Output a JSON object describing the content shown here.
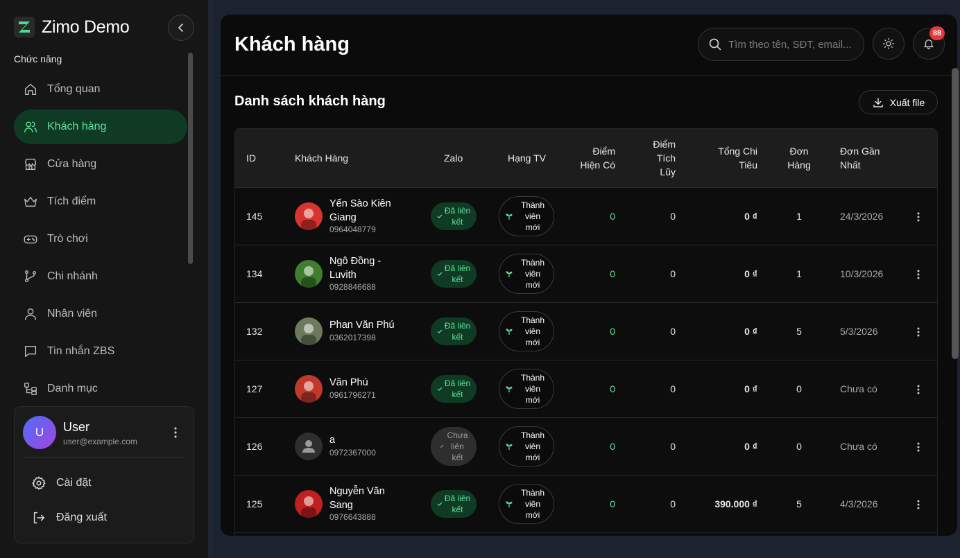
{
  "brand": {
    "title": "Zimo Demo"
  },
  "sidebar": {
    "section_label": "Chức năng",
    "items": [
      {
        "label": "Tổng quan",
        "icon": "home-icon"
      },
      {
        "label": "Khách hàng",
        "icon": "users-icon",
        "active": true
      },
      {
        "label": "Cửa hàng",
        "icon": "store-icon"
      },
      {
        "label": "Tích điểm",
        "icon": "crown-icon"
      },
      {
        "label": "Trò chơi",
        "icon": "gamepad-icon"
      },
      {
        "label": "Chi nhánh",
        "icon": "branch-icon"
      },
      {
        "label": "Nhân viên",
        "icon": "user-icon"
      },
      {
        "label": "Tin nhắn ZBS",
        "icon": "message-icon"
      },
      {
        "label": "Danh mục",
        "icon": "category-icon"
      }
    ]
  },
  "user": {
    "initial": "U",
    "name": "User",
    "email": "user@example.com",
    "settings_label": "Cài đặt",
    "logout_label": "Đăng xuất"
  },
  "header": {
    "title": "Khách hàng",
    "search_placeholder": "Tìm theo tên, SĐT, email...",
    "notification_count": "88"
  },
  "card": {
    "title": "Danh sách khách hàng",
    "export_label": "Xuất file"
  },
  "table": {
    "columns": {
      "id": "ID",
      "customer": "Khách Hàng",
      "zalo": "Zalo",
      "rank": "Hạng TV",
      "points_current": [
        "Điểm",
        "Hiện Có"
      ],
      "points_total": [
        "Điểm",
        "Tích",
        "Lũy"
      ],
      "total_spent": [
        "Tổng Chi",
        "Tiêu"
      ],
      "orders": [
        "Đơn",
        "Hàng"
      ],
      "last_order": [
        "Đơn Gần",
        "Nhất"
      ]
    },
    "rows": [
      {
        "id": "145",
        "name": [
          "Yến Sào Kiên",
          "Giang"
        ],
        "phone": "0964048779",
        "zalo": [
          "Đã liên",
          "kết"
        ],
        "zalo_linked": true,
        "rank": [
          "Thành",
          "viên",
          "mới"
        ],
        "points_current": "0",
        "points_total": "0",
        "spent": "0 ₫",
        "orders": "1",
        "last_order": "24/3/2026",
        "avatar_color": "#d8342f"
      },
      {
        "id": "134",
        "name": [
          "Ngô Đồng -",
          "Luvith"
        ],
        "phone": "0928846688",
        "zalo": [
          "Đã liên",
          "kết"
        ],
        "zalo_linked": true,
        "rank": [
          "Thành",
          "viên",
          "mới"
        ],
        "points_current": "0",
        "points_total": "0",
        "spent": "0 ₫",
        "orders": "1",
        "last_order": "10/3/2026",
        "avatar_color": "#3f7d2f"
      },
      {
        "id": "132",
        "name": [
          "Phan Văn Phú"
        ],
        "phone": "0362017398",
        "zalo": [
          "Đã liên",
          "kết"
        ],
        "zalo_linked": true,
        "rank": [
          "Thành",
          "viên",
          "mới"
        ],
        "points_current": "0",
        "points_total": "0",
        "spent": "0 ₫",
        "orders": "5",
        "last_order": "5/3/2026",
        "avatar_color": "#6b7a5a"
      },
      {
        "id": "127",
        "name": [
          "Văn Phú"
        ],
        "phone": "0961796271",
        "zalo": [
          "Đã liên",
          "kết"
        ],
        "zalo_linked": true,
        "rank": [
          "Thành",
          "viên",
          "mới"
        ],
        "points_current": "0",
        "points_total": "0",
        "spent": "0 ₫",
        "orders": "0",
        "last_order": "Chưa có",
        "avatar_color": "#c0392b"
      },
      {
        "id": "126",
        "name": [
          "a"
        ],
        "phone": "0972367000",
        "zalo": [
          "Chưa",
          "liên",
          "kết"
        ],
        "zalo_linked": false,
        "rank": [
          "Thành",
          "viên",
          "mới"
        ],
        "points_current": "0",
        "points_total": "0",
        "spent": "0 ₫",
        "orders": "0",
        "last_order": "Chưa có",
        "avatar_color": "#2e2e2e"
      },
      {
        "id": "125",
        "name": [
          "Nguyễn Văn",
          "Sang"
        ],
        "phone": "0976643888",
        "zalo": [
          "Đã liên",
          "kết"
        ],
        "zalo_linked": true,
        "rank": [
          "Thành",
          "viên",
          "mới"
        ],
        "points_current": "0",
        "points_total": "0",
        "spent": "390.000 ₫",
        "orders": "5",
        "last_order": "4/3/2026",
        "avatar_color": "#c0201f"
      }
    ]
  },
  "colors": {
    "accent": "#5ee39a",
    "accent_bg": "#0f3a24",
    "badge": "#e5373d",
    "panel": "#0b0b0b"
  }
}
